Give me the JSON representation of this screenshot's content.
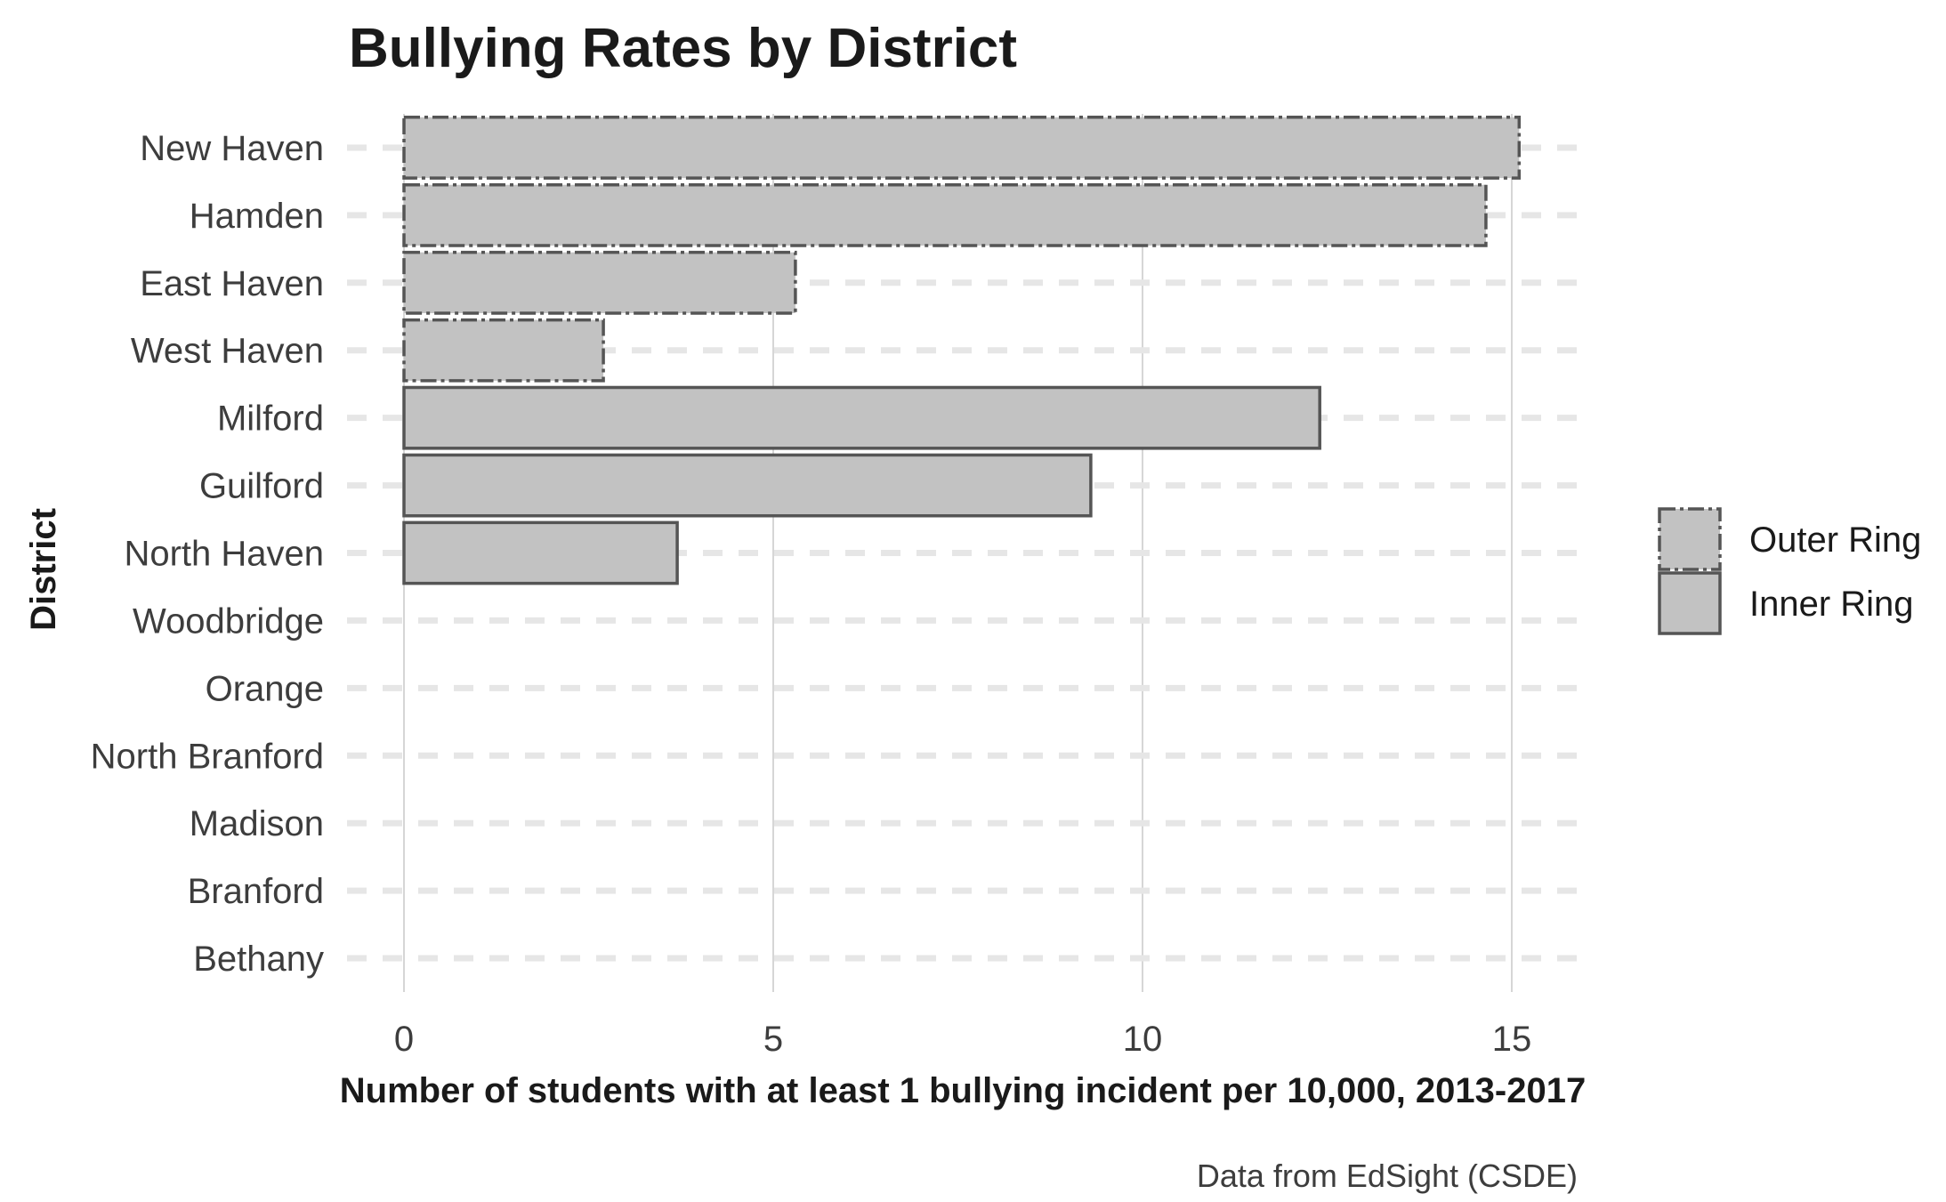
{
  "chart_data": {
    "type": "bar",
    "orientation": "horizontal",
    "title": "Bullying Rates by District",
    "xlabel": "Number of students with at least 1 bullying incident per 10,000, 2013-2017",
    "ylabel": "District",
    "caption": "Data from EdSight (CSDE)",
    "xlim": [
      0,
      15.9
    ],
    "x_ticks": [
      0,
      5,
      10,
      15
    ],
    "grid": true,
    "legend_position": "right",
    "bar_fill": "#c2c2c2",
    "bar_outline": "#555555",
    "categories": [
      "New Haven",
      "Hamden",
      "East Haven",
      "West Haven",
      "Milford",
      "Guilford",
      "North Haven",
      "Woodbridge",
      "Orange",
      "North Branford",
      "Madison",
      "Branford",
      "Bethany"
    ],
    "values": [
      15.1,
      14.65,
      5.3,
      2.7,
      12.4,
      9.3,
      3.7,
      0,
      0,
      0,
      0,
      0,
      0
    ],
    "groups": [
      "Outer Ring",
      "Outer Ring",
      "Outer Ring",
      "Outer Ring",
      "Inner Ring",
      "Inner Ring",
      "Inner Ring",
      "Inner Ring",
      "Inner Ring",
      "Inner Ring",
      "Inner Ring",
      "Inner Ring",
      "Inner Ring"
    ],
    "legend": [
      {
        "name": "Outer Ring",
        "line_style": "dashed"
      },
      {
        "name": "Inner Ring",
        "line_style": "solid"
      }
    ]
  }
}
